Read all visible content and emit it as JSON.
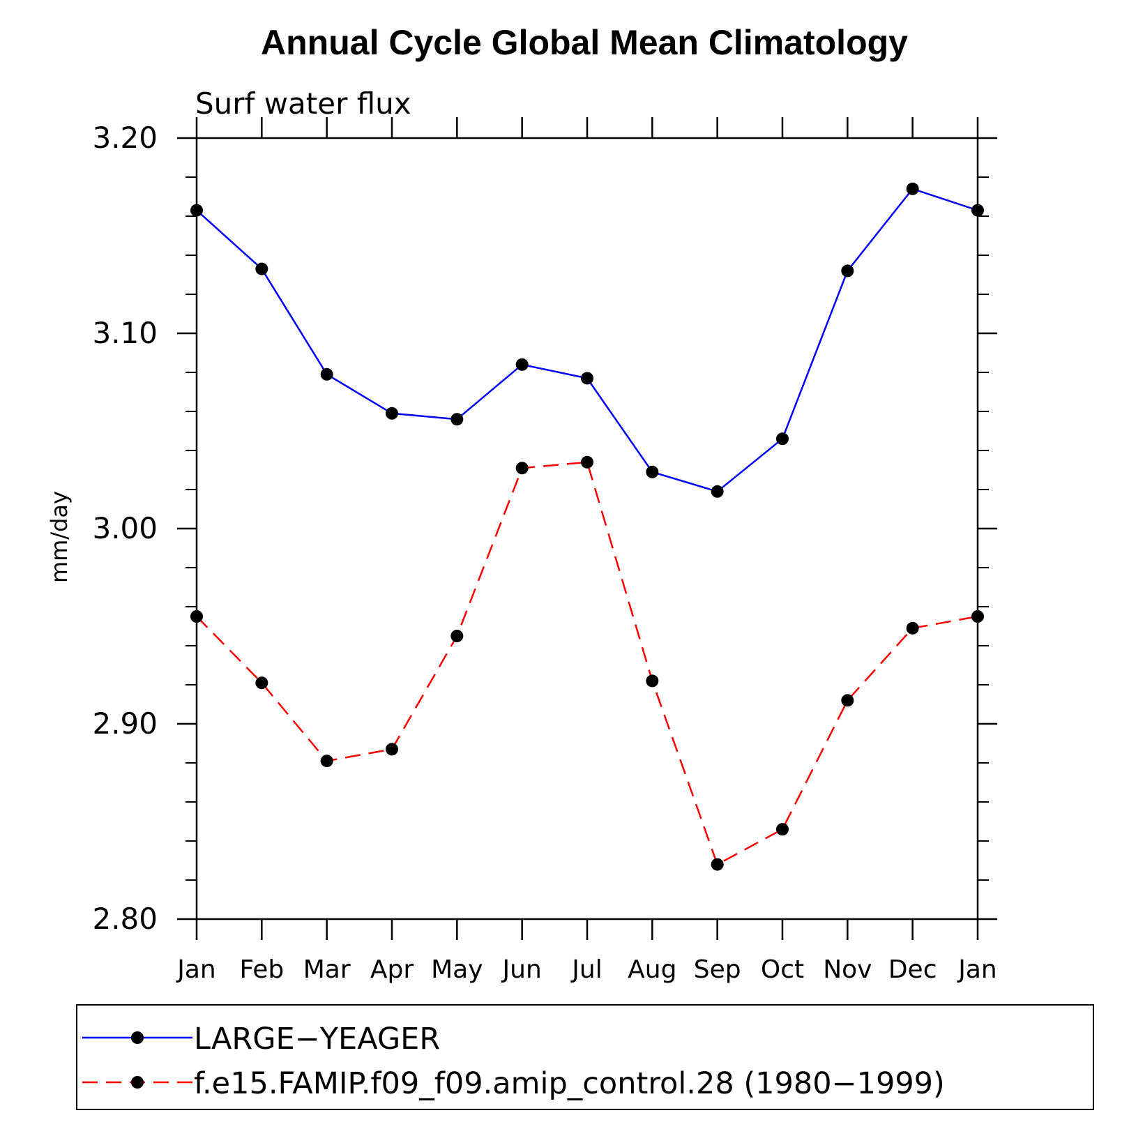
{
  "chart_data": {
    "type": "line",
    "title": "Annual Cycle Global Mean Climatology",
    "subtitle": "Surf water flux",
    "ylabel": "mm/day",
    "xlabel": "",
    "categories": [
      "Jan",
      "Feb",
      "Mar",
      "Apr",
      "May",
      "Jun",
      "Jul",
      "Aug",
      "Sep",
      "Oct",
      "Nov",
      "Dec",
      "Jan"
    ],
    "ylim": [
      2.8,
      3.2
    ],
    "yticks": [
      "2.80",
      "2.90",
      "3.00",
      "3.10",
      "3.20"
    ],
    "grid": false,
    "legend_position": "bottom",
    "series": [
      {
        "name": "LARGE−YEAGER",
        "color": "#0000ff",
        "dash": "solid",
        "marker": "circle",
        "values": [
          3.163,
          3.133,
          3.079,
          3.059,
          3.056,
          3.084,
          3.077,
          3.029,
          3.019,
          3.046,
          3.132,
          3.174,
          3.163
        ]
      },
      {
        "name": "f.e15.FAMIP.f09_f09.amip_control.28 (1980−1999)",
        "color": "#ff0000",
        "dash": "dashed",
        "marker": "circle",
        "values": [
          2.955,
          2.921,
          2.881,
          2.887,
          2.945,
          3.031,
          3.034,
          2.922,
          2.828,
          2.846,
          2.912,
          2.949,
          2.955
        ]
      }
    ]
  }
}
